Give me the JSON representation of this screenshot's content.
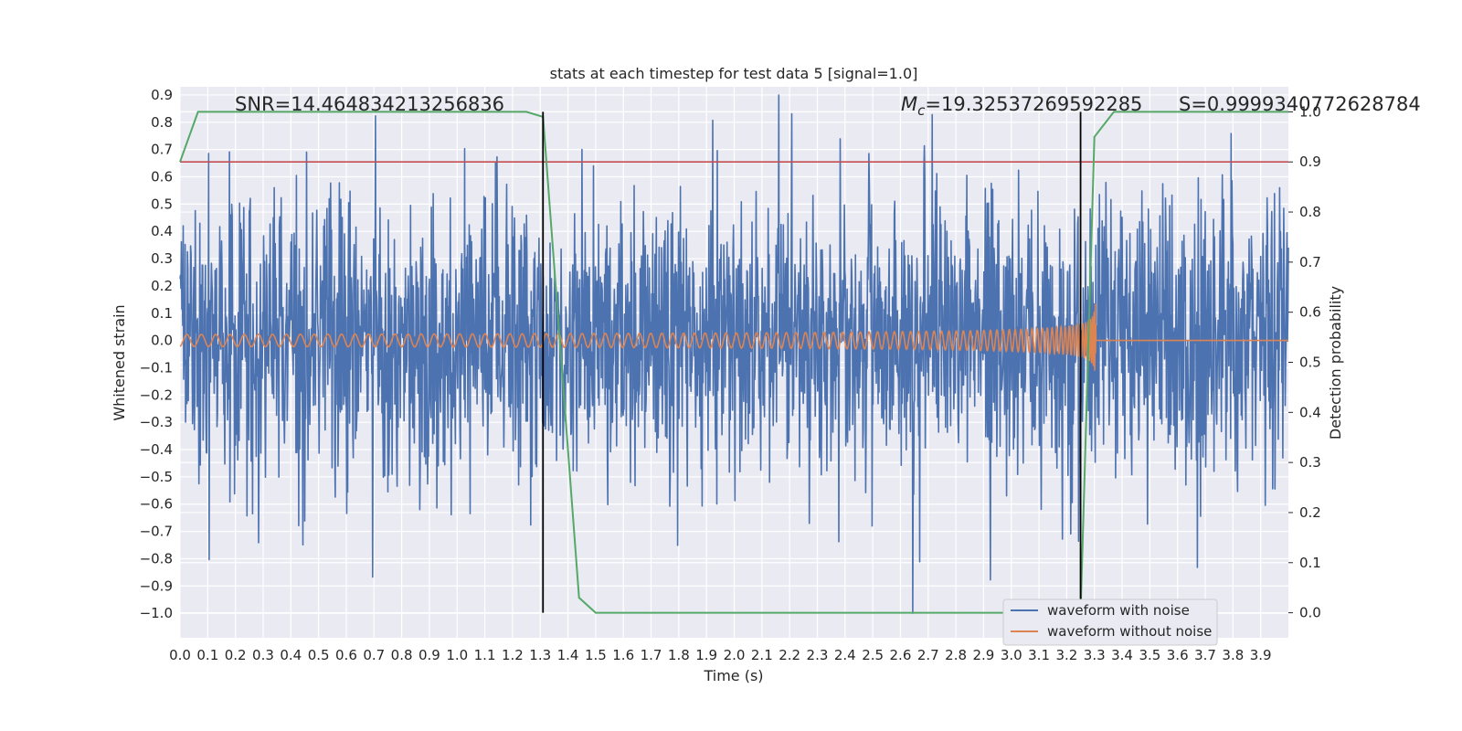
{
  "chart_data": {
    "type": "line",
    "title": "stats at each timestep for test data 5 [signal=1.0]",
    "xlabel": "Time (s)",
    "ylabel": "Whitened strain",
    "y2label": "Detection probability",
    "xlim": [
      0.0,
      4.0
    ],
    "ylim": [
      -1.09,
      0.93
    ],
    "y2lim": [
      -0.05,
      1.05
    ],
    "x_ticks": [
      "0.0",
      "0.1",
      "0.2",
      "0.3",
      "0.4",
      "0.5",
      "0.6",
      "0.7",
      "0.8",
      "0.9",
      "1.0",
      "1.1",
      "1.2",
      "1.3",
      "1.4",
      "1.5",
      "1.6",
      "1.7",
      "1.8",
      "1.9",
      "2.0",
      "2.1",
      "2.2",
      "2.3",
      "2.4",
      "2.5",
      "2.6",
      "2.7",
      "2.8",
      "2.9",
      "3.0",
      "3.1",
      "3.2",
      "3.3",
      "3.4",
      "3.5",
      "3.6",
      "3.7",
      "3.8",
      "3.9"
    ],
    "y_ticks": [
      "0.9",
      "0.8",
      "0.7",
      "0.6",
      "0.5",
      "0.4",
      "0.3",
      "0.2",
      "0.1",
      "0.0",
      "−0.1",
      "−0.2",
      "−0.3",
      "−0.4",
      "−0.5",
      "−0.6",
      "−0.7",
      "−0.8",
      "−0.9",
      "−1.0"
    ],
    "y2_ticks": [
      "1.0",
      "0.9",
      "0.8",
      "0.7",
      "0.6",
      "0.5",
      "0.4",
      "0.3",
      "0.2",
      "0.1",
      "0.0"
    ],
    "grid": true,
    "series": [
      {
        "name": "waveform with noise",
        "color": "#4c72b0",
        "description": "whitened noisy strain, roughly zero-mean, amplitude ~0.3-0.9"
      },
      {
        "name": "waveform without noise",
        "color": "#dd8452",
        "description": "chirp signal, amplitude grows to merger near t=3.3 s then ringdown to 0"
      },
      {
        "name": "detection probability",
        "color": "#55a868",
        "axis": "right",
        "x": [
          0.0,
          0.065,
          0.13,
          1.25,
          1.31,
          1.44,
          1.5,
          1.52,
          3.25,
          3.3,
          3.37,
          4.0
        ],
        "values": [
          0.9,
          1.0,
          1.0,
          1.0,
          0.99,
          0.03,
          0.0,
          0.0,
          0.0,
          0.95,
          1.0,
          1.0
        ]
      }
    ],
    "threshold": {
      "value": 0.9,
      "axis": "right",
      "color": "#c44e52"
    },
    "vlines": [
      1.31,
      3.25
    ],
    "legend": {
      "placement": "lower-right",
      "entries": [
        "waveform with noise",
        "waveform without noise"
      ]
    },
    "annotations": {
      "snr": "SNR=14.464834213256836",
      "mc_symbol": "M",
      "mc_sub": "c",
      "mc_value": "=19.32537269592285",
      "s": "S=0.9999340772628784"
    }
  }
}
